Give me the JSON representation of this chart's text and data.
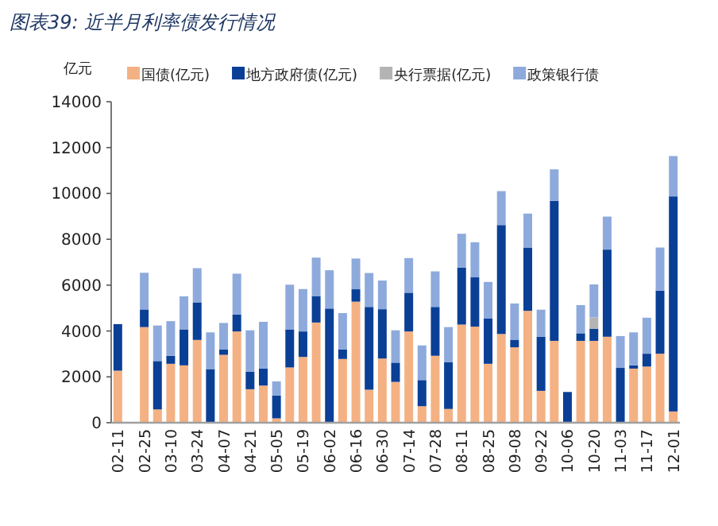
{
  "chart_data": {
    "type": "bar",
    "stacked": true,
    "title": "图表39:  近半月利率债发行情况",
    "ylabel": "亿元",
    "legend": "top",
    "categories": [
      "02-11",
      null,
      "02-25",
      null,
      "03-10",
      null,
      "03-24",
      null,
      "04-07",
      null,
      "04-21",
      null,
      "05-05",
      null,
      "05-19",
      null,
      "06-02",
      null,
      "06-16",
      null,
      "06-30",
      null,
      "07-14",
      null,
      "07-28",
      null,
      "08-11",
      null,
      "08-25",
      null,
      "09-08",
      null,
      "09-22",
      null,
      "10-06",
      null,
      "10-20",
      null,
      "11-03",
      null,
      "11-17",
      null,
      "12-01"
    ],
    "ylim": [
      0,
      14000
    ],
    "yticks": [
      0,
      2000,
      4000,
      6000,
      8000,
      10000,
      12000,
      14000
    ],
    "series": [
      {
        "name": "国债(亿元)",
        "color": "#f4b183",
        "values": [
          2270,
          0,
          4170,
          580,
          2570,
          2500,
          3610,
          0,
          2960,
          3980,
          1460,
          1620,
          190,
          2410,
          2870,
          4370,
          0,
          2780,
          5280,
          1440,
          2800,
          1780,
          3980,
          720,
          2920,
          600,
          4280,
          4190,
          2570,
          3870,
          3290,
          4880,
          1390,
          3570,
          0,
          3570,
          3570,
          3750,
          0,
          2360,
          2450,
          3010,
          490
        ]
      },
      {
        "name": "地方政府债(亿元)",
        "color": "#0a3f96",
        "values": [
          2030,
          0,
          770,
          2110,
          350,
          1570,
          1640,
          2340,
          230,
          740,
          760,
          740,
          990,
          1660,
          1110,
          1140,
          4980,
          420,
          540,
          3610,
          2150,
          840,
          1690,
          1140,
          2130,
          2040,
          2480,
          2150,
          1970,
          4750,
          330,
          2760,
          2360,
          6110,
          1340,
          330,
          530,
          3800,
          2390,
          140,
          560,
          2750,
          9380
        ]
      },
      {
        "name": "央行票据(亿元)",
        "color": "#b4b4b4",
        "values": [
          0,
          0,
          0,
          0,
          0,
          0,
          0,
          0,
          0,
          0,
          0,
          0,
          0,
          0,
          0,
          0,
          0,
          0,
          0,
          0,
          0,
          0,
          0,
          0,
          0,
          0,
          0,
          0,
          0,
          0,
          0,
          0,
          0,
          0,
          0,
          0,
          490,
          0,
          0,
          0,
          0,
          0,
          0
        ]
      },
      {
        "name": "政策银行债",
        "color": "#8eaadc",
        "values": [
          0,
          0,
          1600,
          1550,
          1510,
          1440,
          1490,
          1600,
          1160,
          1780,
          1810,
          2040,
          620,
          1950,
          1850,
          1690,
          1670,
          1580,
          1340,
          1480,
          1250,
          1410,
          1510,
          1510,
          1550,
          1530,
          1480,
          1530,
          1600,
          1480,
          1580,
          1480,
          1180,
          1370,
          0,
          1230,
          1440,
          1440,
          1390,
          1440,
          1570,
          1880,
          1760
        ]
      }
    ]
  }
}
